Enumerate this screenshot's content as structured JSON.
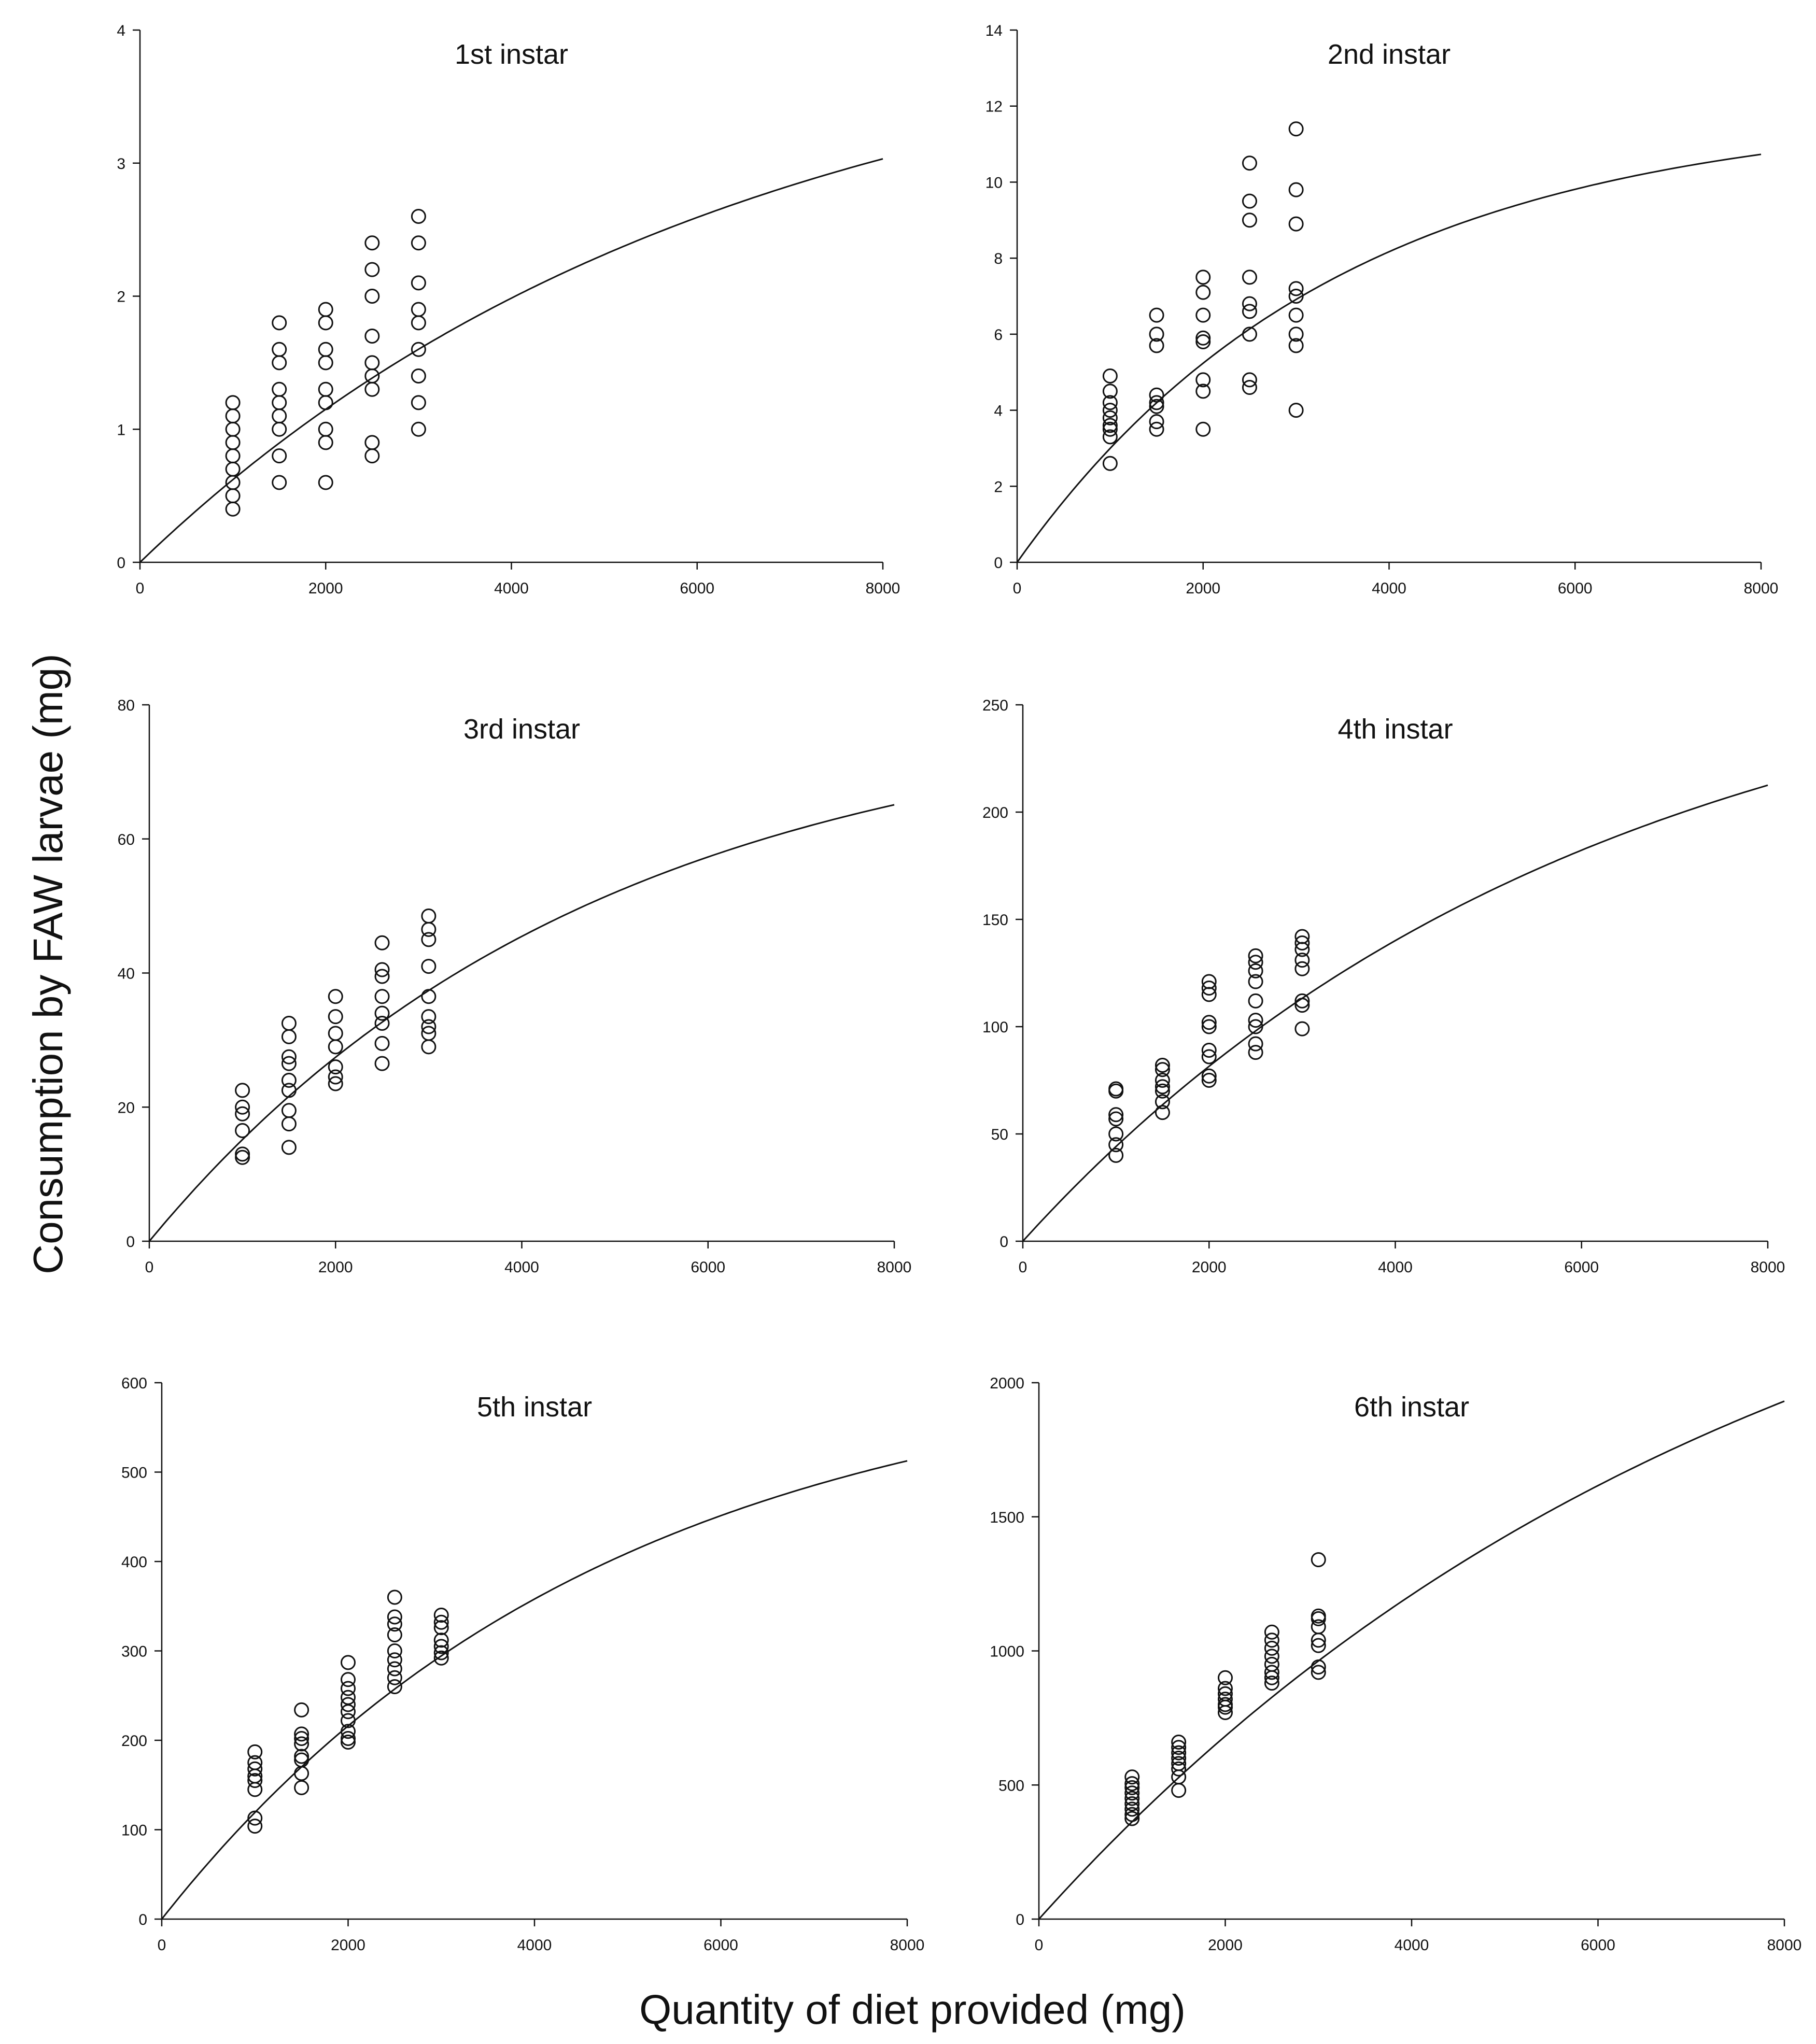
{
  "figure": {
    "ylabel": "Consumption by FAW larvae (mg)",
    "xlabel": "Quantity of diet provided (mg)"
  },
  "chart_data": [
    {
      "type": "scatter",
      "title": "1st instar",
      "xlim": [
        0,
        8000
      ],
      "ylim": [
        0,
        4
      ],
      "xticks": [
        0,
        2000,
        4000,
        6000,
        8000
      ],
      "yticks": [
        0,
        1,
        2,
        3,
        4
      ],
      "fit": {
        "type": "saturating-exponential",
        "asymptote": 4.2,
        "rate": 0.00016
      },
      "points": [
        {
          "x": 1000,
          "y": [
            1.2,
            1.1,
            1.0,
            0.9,
            0.8,
            0.7,
            0.6,
            0.5,
            0.4
          ]
        },
        {
          "x": 1500,
          "y": [
            1.8,
            1.6,
            1.5,
            1.3,
            1.2,
            1.1,
            1.0,
            0.8,
            0.6
          ]
        },
        {
          "x": 2000,
          "y": [
            1.9,
            1.8,
            1.6,
            1.5,
            1.3,
            1.2,
            1.0,
            0.9,
            0.6
          ]
        },
        {
          "x": 2500,
          "y": [
            2.4,
            2.2,
            2.0,
            1.7,
            1.5,
            1.4,
            1.3,
            0.9,
            0.8
          ]
        },
        {
          "x": 3000,
          "y": [
            2.6,
            2.4,
            2.1,
            1.9,
            1.8,
            1.6,
            1.4,
            1.2,
            1.0
          ]
        }
      ]
    },
    {
      "type": "scatter",
      "title": "2nd instar",
      "xlim": [
        0,
        8000
      ],
      "ylim": [
        0,
        14
      ],
      "xticks": [
        0,
        2000,
        4000,
        6000,
        8000
      ],
      "yticks": [
        0,
        2,
        4,
        6,
        8,
        10,
        12,
        14
      ],
      "fit": {
        "type": "saturating-exponential",
        "asymptote": 11.9,
        "rate": 0.00029
      },
      "points": [
        {
          "x": 1000,
          "y": [
            4.9,
            4.5,
            4.2,
            4.0,
            3.8,
            3.6,
            3.5,
            3.3,
            2.6
          ]
        },
        {
          "x": 1500,
          "y": [
            6.5,
            6.0,
            5.7,
            4.4,
            4.2,
            4.1,
            3.7,
            3.5
          ]
        },
        {
          "x": 2000,
          "y": [
            7.5,
            7.1,
            6.5,
            5.9,
            5.8,
            4.8,
            4.5,
            3.5
          ]
        },
        {
          "x": 2500,
          "y": [
            10.5,
            9.5,
            9.0,
            7.5,
            6.8,
            6.6,
            6.0,
            4.8,
            4.6
          ]
        },
        {
          "x": 3000,
          "y": [
            11.4,
            9.8,
            8.9,
            7.2,
            7.0,
            6.5,
            6.0,
            5.7,
            4.0
          ]
        }
      ]
    },
    {
      "type": "scatter",
      "title": "3rd instar",
      "xlim": [
        0,
        8000
      ],
      "ylim": [
        0,
        80
      ],
      "xticks": [
        0,
        2000,
        4000,
        6000,
        8000
      ],
      "yticks": [
        0,
        20,
        40,
        60,
        80
      ],
      "fit": {
        "type": "saturating-exponential",
        "asymptote": 80,
        "rate": 0.00021
      },
      "points": [
        {
          "x": 1000,
          "y": [
            22.5,
            20.0,
            19.0,
            16.5,
            13.0,
            12.5
          ]
        },
        {
          "x": 1500,
          "y": [
            32.5,
            30.5,
            27.5,
            26.5,
            24.0,
            22.5,
            19.5,
            17.5,
            14.0
          ]
        },
        {
          "x": 2000,
          "y": [
            36.5,
            33.5,
            31.0,
            29.0,
            26.0,
            24.5,
            23.5
          ]
        },
        {
          "x": 2500,
          "y": [
            44.5,
            40.5,
            39.5,
            36.5,
            34.0,
            32.5,
            29.5,
            26.5
          ]
        },
        {
          "x": 3000,
          "y": [
            48.5,
            46.5,
            45.0,
            41.0,
            36.5,
            33.5,
            32.0,
            31.0,
            29.0
          ]
        }
      ]
    },
    {
      "type": "scatter",
      "title": "4th instar",
      "xlim": [
        0,
        8000
      ],
      "ylim": [
        0,
        250
      ],
      "xticks": [
        0,
        2000,
        4000,
        6000,
        8000
      ],
      "yticks": [
        0,
        50,
        100,
        150,
        200,
        250
      ],
      "fit": {
        "type": "saturating-exponential",
        "asymptote": 290,
        "rate": 0.000165
      },
      "points": [
        {
          "x": 1000,
          "y": [
            71,
            70,
            59,
            57,
            50,
            45,
            40
          ]
        },
        {
          "x": 1500,
          "y": [
            82,
            80,
            75,
            72,
            70,
            65,
            60
          ]
        },
        {
          "x": 2000,
          "y": [
            121,
            118,
            115,
            102,
            100,
            89,
            86,
            77,
            75
          ]
        },
        {
          "x": 2500,
          "y": [
            133,
            130,
            126,
            121,
            112,
            103,
            100,
            92,
            88
          ]
        },
        {
          "x": 3000,
          "y": [
            142,
            139,
            136,
            131,
            127,
            112,
            110,
            99
          ]
        }
      ]
    },
    {
      "type": "scatter",
      "title": "5th instar",
      "xlim": [
        0,
        8000
      ],
      "ylim": [
        0,
        600
      ],
      "xticks": [
        0,
        2000,
        4000,
        6000,
        8000
      ],
      "yticks": [
        0,
        100,
        200,
        300,
        400,
        500,
        600
      ],
      "fit": {
        "type": "saturating-exponential",
        "asymptote": 630,
        "rate": 0.00021
      },
      "points": [
        {
          "x": 1000,
          "y": [
            187,
            175,
            168,
            160,
            155,
            145,
            113,
            104
          ]
        },
        {
          "x": 1500,
          "y": [
            234,
            207,
            202,
            196,
            182,
            178,
            163,
            147
          ]
        },
        {
          "x": 2000,
          "y": [
            287,
            268,
            258,
            248,
            240,
            232,
            222,
            210,
            202,
            198
          ]
        },
        {
          "x": 2500,
          "y": [
            360,
            338,
            330,
            318,
            300,
            290,
            280,
            270,
            260
          ]
        },
        {
          "x": 3000,
          "y": [
            340,
            332,
            326,
            312,
            305,
            298,
            292
          ]
        }
      ]
    },
    {
      "type": "scatter",
      "title": "6th instar",
      "xlim": [
        0,
        8000
      ],
      "ylim": [
        0,
        2000
      ],
      "xticks": [
        0,
        2000,
        4000,
        6000,
        8000
      ],
      "yticks": [
        0,
        500,
        1000,
        1500,
        2000
      ],
      "fit": {
        "type": "saturating-exponential",
        "asymptote": 3000,
        "rate": 0.000129
      },
      "points": [
        {
          "x": 1000,
          "y": [
            530,
            505,
            490,
            470,
            450,
            430,
            410,
            390,
            375
          ]
        },
        {
          "x": 1500,
          "y": [
            660,
            640,
            620,
            600,
            580,
            560,
            530,
            480
          ]
        },
        {
          "x": 2000,
          "y": [
            900,
            860,
            840,
            820,
            800,
            790,
            770
          ]
        },
        {
          "x": 2500,
          "y": [
            1070,
            1040,
            1010,
            980,
            950,
            920,
            900,
            880
          ]
        },
        {
          "x": 3000,
          "y": [
            1340,
            1130,
            1120,
            1090,
            1040,
            1020,
            940,
            920
          ]
        }
      ]
    }
  ]
}
